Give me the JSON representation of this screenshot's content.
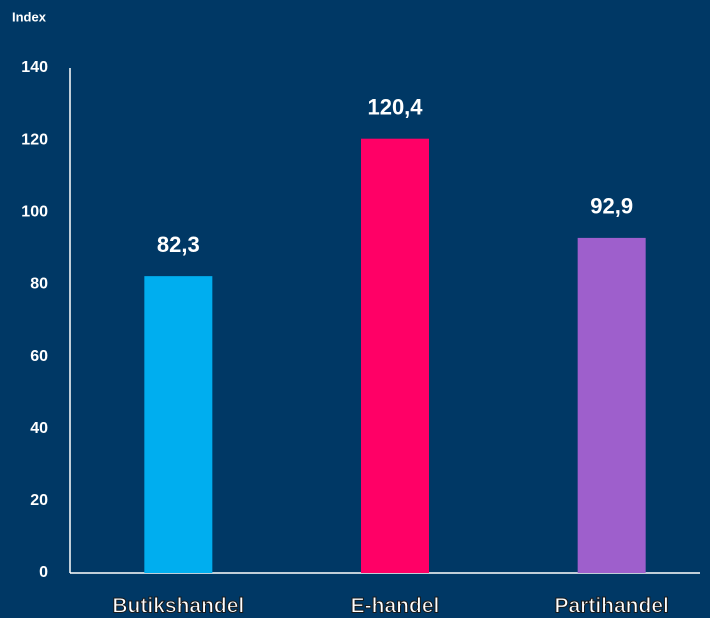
{
  "chart_data": {
    "type": "bar",
    "y_label": "Index",
    "categories": [
      "Butikshandel",
      "E-handel",
      "Partihandel"
    ],
    "values": [
      82.3,
      120.4,
      92.9
    ],
    "value_labels": [
      "82,3",
      "120,4",
      "92,9"
    ],
    "colors": [
      "#00aeef",
      "#ff0066",
      "#9e5fcc"
    ],
    "ylim": [
      0,
      140
    ],
    "yticks": [
      0,
      20,
      40,
      60,
      80,
      100,
      120,
      140
    ],
    "grid": false
  }
}
